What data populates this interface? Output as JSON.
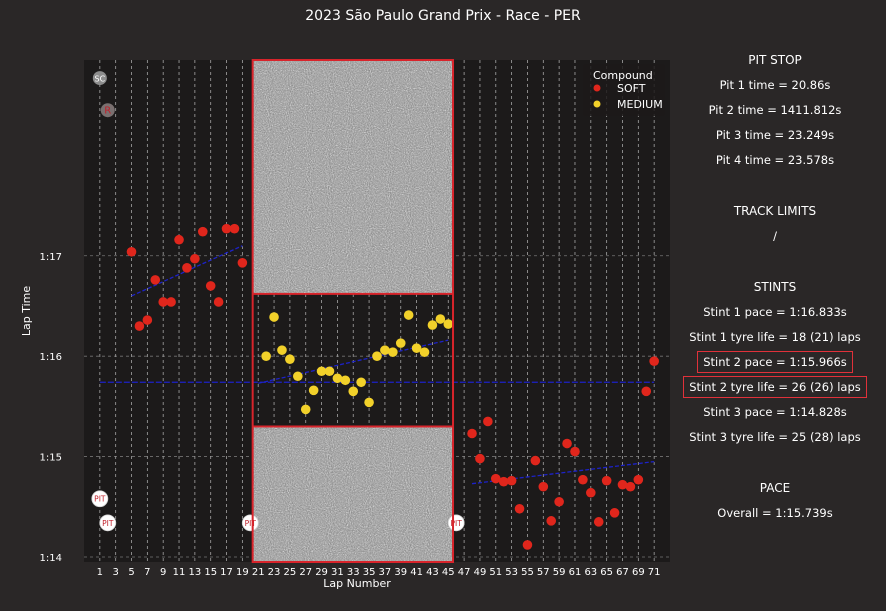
{
  "title": "2023 São Paulo Grand Prix - Race - PER",
  "chart_data": {
    "type": "scatter",
    "title": "2023 São Paulo Grand Prix - Race - PER",
    "xlabel": "Lap Number",
    "ylabel": "Lap Time",
    "xlim": [
      -1,
      73
    ],
    "ylim_seconds": [
      73.95,
      78.95
    ],
    "x_ticks": [
      1,
      3,
      5,
      7,
      9,
      11,
      13,
      15,
      17,
      19,
      21,
      23,
      25,
      27,
      29,
      31,
      33,
      35,
      37,
      39,
      41,
      43,
      45,
      47,
      49,
      51,
      53,
      55,
      57,
      59,
      61,
      63,
      65,
      67,
      69,
      71
    ],
    "y_ticks": [
      {
        "value": 74,
        "label": "1:14"
      },
      {
        "value": 75,
        "label": "1:15"
      },
      {
        "value": 76,
        "label": "1:16"
      },
      {
        "value": 77,
        "label": "1:17"
      }
    ],
    "grid": "vertical dashed at each odd lap, horizontal dashed at each second",
    "legend": {
      "title": "Compound",
      "placement": "top-right",
      "entries": [
        {
          "label": "SOFT",
          "color": "#e0261c"
        },
        {
          "label": "MEDIUM",
          "color": "#f2d12a"
        }
      ]
    },
    "series": [
      {
        "name": "SOFT",
        "color": "#e0261c",
        "points": [
          [
            5,
            77.04
          ],
          [
            6,
            76.3
          ],
          [
            7,
            76.36
          ],
          [
            8,
            76.76
          ],
          [
            9,
            76.54
          ],
          [
            10,
            76.54
          ],
          [
            11,
            77.16
          ],
          [
            12,
            76.88
          ],
          [
            13,
            76.97
          ],
          [
            14,
            77.24
          ],
          [
            15,
            76.7
          ],
          [
            16,
            76.54
          ],
          [
            17,
            77.27
          ],
          [
            18,
            77.27
          ],
          [
            19,
            76.93
          ],
          [
            48,
            75.23
          ],
          [
            49,
            74.98
          ],
          [
            50,
            75.35
          ],
          [
            51,
            74.78
          ],
          [
            52,
            74.75
          ],
          [
            53,
            74.76
          ],
          [
            54,
            74.48
          ],
          [
            55,
            74.12
          ],
          [
            56,
            74.96
          ],
          [
            57,
            74.7
          ],
          [
            58,
            74.36
          ],
          [
            59,
            74.55
          ],
          [
            60,
            75.13
          ],
          [
            61,
            75.05
          ],
          [
            62,
            74.77
          ],
          [
            63,
            74.64
          ],
          [
            64,
            74.35
          ],
          [
            65,
            74.76
          ],
          [
            66,
            74.44
          ],
          [
            67,
            74.72
          ],
          [
            68,
            74.7
          ],
          [
            69,
            74.77
          ],
          [
            70,
            75.65
          ],
          [
            71,
            75.95
          ]
        ]
      },
      {
        "name": "MEDIUM",
        "color": "#f2d12a",
        "points": [
          [
            22,
            76.0
          ],
          [
            23,
            76.39
          ],
          [
            24,
            76.06
          ],
          [
            25,
            75.97
          ],
          [
            26,
            75.8
          ],
          [
            27,
            75.47
          ],
          [
            28,
            75.66
          ],
          [
            29,
            75.85
          ],
          [
            30,
            75.85
          ],
          [
            31,
            75.78
          ],
          [
            32,
            75.76
          ],
          [
            33,
            75.65
          ],
          [
            34,
            75.74
          ],
          [
            35,
            75.54
          ],
          [
            36,
            76.0
          ],
          [
            37,
            76.06
          ],
          [
            38,
            76.04
          ],
          [
            39,
            76.13
          ],
          [
            40,
            76.41
          ],
          [
            41,
            76.08
          ],
          [
            42,
            76.04
          ],
          [
            43,
            76.31
          ],
          [
            44,
            76.37
          ],
          [
            45,
            76.32
          ]
        ]
      }
    ],
    "trend_lines": [
      {
        "stint": 1,
        "color": "#1d22c8",
        "from": [
          5,
          76.6
        ],
        "to": [
          19,
          77.1
        ]
      },
      {
        "stint": 2,
        "color": "#1d22c8",
        "from": [
          21,
          75.73
        ],
        "to": [
          45,
          76.16
        ]
      },
      {
        "stint": 3,
        "color": "#1d22c8",
        "from": [
          48,
          74.73
        ],
        "to": [
          71,
          74.95
        ]
      },
      {
        "stint": "overall",
        "color": "#1d22c8",
        "from": [
          1,
          75.74
        ],
        "to": [
          71,
          75.74
        ]
      }
    ],
    "pit_markers": [
      {
        "lap": 1,
        "value": 74.58,
        "label": "PIT"
      },
      {
        "lap": 2,
        "value": 74.34,
        "label": "PIT"
      },
      {
        "lap": 20,
        "value": 74.34,
        "label": "PIT"
      },
      {
        "lap": 46,
        "value": 74.34,
        "label": "PIT"
      }
    ],
    "event_markers": [
      {
        "lap": 1,
        "value": 78.77,
        "label": "SC"
      },
      {
        "lap": 2,
        "value": 78.45,
        "label": "R"
      }
    ],
    "noise_regions": [
      {
        "lap_from": 20.3,
        "lap_to": 45.6,
        "value_from": 76.62,
        "value_to": 78.95
      },
      {
        "lap_from": 20.3,
        "lap_to": 45.6,
        "value_from": 73.95,
        "value_to": 75.3
      }
    ],
    "highlight_region": {
      "lap_from": 20.3,
      "lap_to": 45.6,
      "value_from": 73.95,
      "value_to": 78.95,
      "border_color": "#d8242b"
    }
  },
  "panel": {
    "pit_stop": {
      "heading": "PIT STOP",
      "lines": [
        "Pit 1 time = 20.86s",
        "Pit 2 time = 1411.812s",
        "Pit 3 time = 23.249s",
        "Pit 4 time = 23.578s"
      ]
    },
    "track_limits": {
      "heading": "TRACK LIMITS",
      "value": "/"
    },
    "stints": {
      "heading": "STINTS",
      "stint1_pace": "Stint 1 pace = 1:16.833s",
      "stint1_life": "Stint 1 tyre life = 18 (21) laps",
      "stint2_pace": "Stint 2 pace = 1:15.966s",
      "stint2_life": "Stint 2 tyre life = 26 (26) laps",
      "stint3_pace": "Stint 3 pace = 1:14.828s",
      "stint3_life": "Stint 3 tyre life = 25 (28) laps"
    },
    "pace": {
      "heading": "PACE",
      "overall": "Overall = 1:15.739s"
    }
  },
  "colors": {
    "background": "#2a2727",
    "plot_background": "#1c1a1a",
    "soft": "#e0261c",
    "medium": "#f2d12a",
    "trend": "#1d22c8",
    "highlight": "#d8242b"
  }
}
